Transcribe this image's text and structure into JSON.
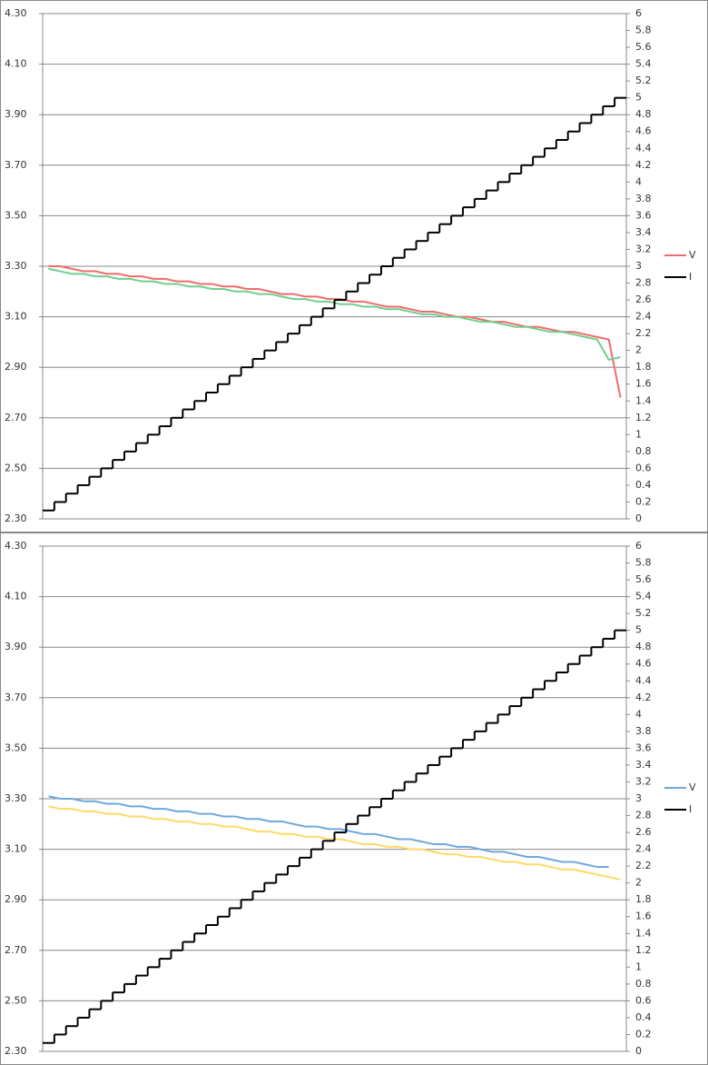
{
  "chart_data": [
    {
      "type": "line",
      "ylim": [
        2.3,
        4.3
      ],
      "yticks": [
        {
          "value": 2.3,
          "label": "2.30"
        },
        {
          "value": 2.5,
          "label": "2.50"
        },
        {
          "value": 2.7,
          "label": "2.70"
        },
        {
          "value": 2.9,
          "label": "2.90"
        },
        {
          "value": 3.1,
          "label": "3.10"
        },
        {
          "value": 3.3,
          "label": "3.30"
        },
        {
          "value": 3.5,
          "label": "3.50"
        },
        {
          "value": 3.7,
          "label": "3.70"
        },
        {
          "value": 3.9,
          "label": "3.90"
        },
        {
          "value": 4.1,
          "label": "4.10"
        },
        {
          "value": 4.3,
          "label": "4.30"
        }
      ],
      "y2lim": [
        0,
        6
      ],
      "y2ticks": [
        0,
        0.2,
        0.4,
        0.6,
        0.8,
        1,
        1.2,
        1.4,
        1.6,
        1.8,
        2,
        2.2,
        2.4,
        2.6,
        2.8,
        3,
        3.2,
        3.4,
        3.6,
        3.8,
        4,
        4.2,
        4.4,
        4.6,
        4.8,
        5,
        5.2,
        5.4,
        5.6,
        5.8,
        6
      ],
      "grid": true,
      "legend": "right",
      "series": [
        {
          "name": "V",
          "color": "#f26b6b",
          "values": [
            3.3,
            3.3,
            3.29,
            3.28,
            3.28,
            3.27,
            3.27,
            3.26,
            3.26,
            3.25,
            3.25,
            3.24,
            3.24,
            3.23,
            3.23,
            3.22,
            3.22,
            3.21,
            3.21,
            3.2,
            3.19,
            3.19,
            3.18,
            3.18,
            3.17,
            3.17,
            3.16,
            3.16,
            3.15,
            3.14,
            3.14,
            3.13,
            3.12,
            3.12,
            3.11,
            3.1,
            3.1,
            3.09,
            3.08,
            3.08,
            3.07,
            3.06,
            3.06,
            3.05,
            3.04,
            3.04,
            3.03,
            3.02,
            3.01,
            2.78
          ]
        },
        {
          "color": "#6fcf8f",
          "values": [
            3.29,
            3.28,
            3.27,
            3.27,
            3.26,
            3.26,
            3.25,
            3.25,
            3.24,
            3.24,
            3.23,
            3.23,
            3.22,
            3.22,
            3.21,
            3.21,
            3.2,
            3.2,
            3.19,
            3.19,
            3.18,
            3.17,
            3.17,
            3.16,
            3.16,
            3.15,
            3.15,
            3.14,
            3.14,
            3.13,
            3.13,
            3.12,
            3.11,
            3.11,
            3.1,
            3.1,
            3.09,
            3.08,
            3.08,
            3.07,
            3.06,
            3.06,
            3.05,
            3.04,
            3.04,
            3.03,
            3.02,
            3.01,
            2.93,
            2.94
          ]
        },
        {
          "name": "I",
          "color": "#000000",
          "axis": "y2",
          "step": true,
          "values": [
            0.1,
            0.2,
            0.3,
            0.4,
            0.5,
            0.6,
            0.7,
            0.8,
            0.9,
            1,
            1.1,
            1.2,
            1.3,
            1.4,
            1.5,
            1.6,
            1.7,
            1.8,
            1.9,
            2,
            2.1,
            2.2,
            2.3,
            2.4,
            2.5,
            2.6,
            2.7,
            2.8,
            2.9,
            3,
            3.1,
            3.2,
            3.3,
            3.4,
            3.5,
            3.6,
            3.7,
            3.8,
            3.9,
            4,
            4.1,
            4.2,
            4.3,
            4.4,
            4.5,
            4.6,
            4.7,
            4.8,
            4.9,
            5
          ]
        }
      ]
    },
    {
      "type": "line",
      "ylim": [
        2.3,
        4.3
      ],
      "yticks": [
        {
          "value": 2.3,
          "label": "2.30"
        },
        {
          "value": 2.5,
          "label": "2.50"
        },
        {
          "value": 2.7,
          "label": "2.70"
        },
        {
          "value": 2.9,
          "label": "2.90"
        },
        {
          "value": 3.1,
          "label": "3.10"
        },
        {
          "value": 3.3,
          "label": "3.30"
        },
        {
          "value": 3.5,
          "label": "3.50"
        },
        {
          "value": 3.7,
          "label": "3.70"
        },
        {
          "value": 3.9,
          "label": "3.90"
        },
        {
          "value": 4.1,
          "label": "4.10"
        },
        {
          "value": 4.3,
          "label": "4.30"
        }
      ],
      "y2lim": [
        0,
        6
      ],
      "y2ticks": [
        0,
        0.2,
        0.4,
        0.6,
        0.8,
        1,
        1.2,
        1.4,
        1.6,
        1.8,
        2,
        2.2,
        2.4,
        2.6,
        2.8,
        3,
        3.2,
        3.4,
        3.6,
        3.8,
        4,
        4.2,
        4.4,
        4.6,
        4.8,
        5,
        5.2,
        5.4,
        5.6,
        5.8,
        6
      ],
      "grid": true,
      "legend": "right",
      "series": [
        {
          "name": "V",
          "color": "#6fa8dc",
          "values": [
            3.31,
            3.3,
            3.3,
            3.29,
            3.29,
            3.28,
            3.28,
            3.27,
            3.27,
            3.26,
            3.26,
            3.25,
            3.25,
            3.24,
            3.24,
            3.23,
            3.23,
            3.22,
            3.22,
            3.21,
            3.21,
            3.2,
            3.19,
            3.19,
            3.18,
            3.18,
            3.17,
            3.16,
            3.16,
            3.15,
            3.14,
            3.14,
            3.13,
            3.12,
            3.12,
            3.11,
            3.11,
            3.1,
            3.09,
            3.09,
            3.08,
            3.07,
            3.07,
            3.06,
            3.05,
            3.05,
            3.04,
            3.03,
            3.03,
            null
          ]
        },
        {
          "color": "#ffd966",
          "values": [
            3.27,
            3.26,
            3.26,
            3.25,
            3.25,
            3.24,
            3.24,
            3.23,
            3.23,
            3.22,
            3.22,
            3.21,
            3.21,
            3.2,
            3.2,
            3.19,
            3.19,
            3.18,
            3.17,
            3.17,
            3.16,
            3.16,
            3.15,
            3.15,
            3.14,
            3.14,
            3.13,
            3.12,
            3.12,
            3.11,
            3.11,
            3.1,
            3.1,
            3.09,
            3.08,
            3.08,
            3.07,
            3.07,
            3.06,
            3.05,
            3.05,
            3.04,
            3.04,
            3.03,
            3.02,
            3.02,
            3.01,
            3.0,
            2.99,
            2.98
          ]
        },
        {
          "name": "I",
          "color": "#000000",
          "axis": "y2",
          "step": true,
          "values": [
            0.1,
            0.2,
            0.3,
            0.4,
            0.5,
            0.6,
            0.7,
            0.8,
            0.9,
            1,
            1.1,
            1.2,
            1.3,
            1.4,
            1.5,
            1.6,
            1.7,
            1.8,
            1.9,
            2,
            2.1,
            2.2,
            2.3,
            2.4,
            2.5,
            2.6,
            2.7,
            2.8,
            2.9,
            3,
            3.1,
            3.2,
            3.3,
            3.4,
            3.5,
            3.6,
            3.7,
            3.8,
            3.9,
            4,
            4.1,
            4.2,
            4.3,
            4.4,
            4.5,
            4.6,
            4.7,
            4.8,
            4.9,
            5
          ]
        }
      ]
    }
  ]
}
